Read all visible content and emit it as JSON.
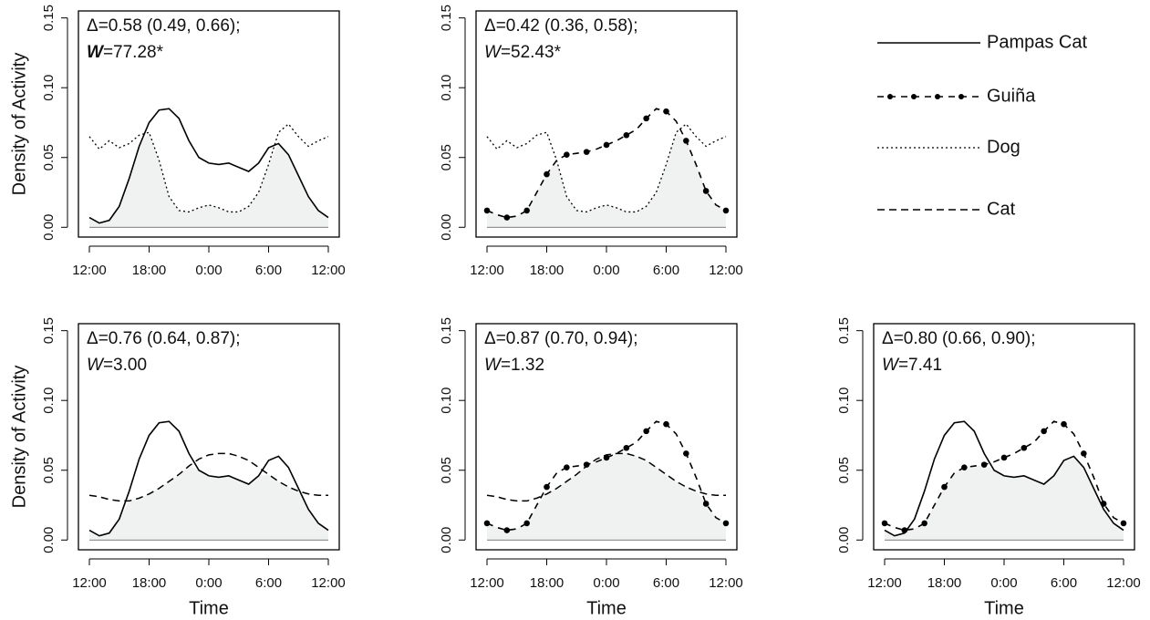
{
  "legend": [
    {
      "name": "Pampas Cat",
      "style": "solid"
    },
    {
      "name": "Guiña",
      "style": "dot-dash"
    },
    {
      "name": "Dog",
      "style": "dotted"
    },
    {
      "name": "Cat",
      "style": "dashed"
    }
  ],
  "chart_data": [
    {
      "type": "line",
      "annotation": [
        "Δ=0.58 (0.49, 0.66);",
        "W=77.28*"
      ],
      "ylabel": "Density of Activity",
      "x": [
        12,
        13,
        14,
        15,
        16,
        17,
        18,
        19,
        20,
        21,
        22,
        23,
        24,
        25,
        26,
        27,
        28,
        29,
        30,
        31,
        32,
        33,
        34,
        35,
        36
      ],
      "xlim": [
        10.9,
        37.1
      ],
      "xticks": [
        {
          "value": 12,
          "label": "12:00"
        },
        {
          "value": 18,
          "label": "18:00"
        },
        {
          "value": 24,
          "label": "0:00"
        },
        {
          "value": 30,
          "label": "6:00"
        },
        {
          "value": 36,
          "label": "12:00"
        }
      ],
      "ylim": [
        -0.007,
        0.155
      ],
      "yticks": [
        {
          "value": 0,
          "label": "0.00"
        },
        {
          "value": 0.05,
          "label": "0.05"
        },
        {
          "value": 0.1,
          "label": "0.10"
        },
        {
          "value": 0.15,
          "label": "0.15"
        }
      ],
      "series": [
        {
          "style": "solid",
          "color": "#000000",
          "values": [
            0.007,
            0.003,
            0.005,
            0.015,
            0.035,
            0.058,
            0.075,
            0.084,
            0.085,
            0.078,
            0.062,
            0.05,
            0.046,
            0.045,
            0.046,
            0.043,
            0.04,
            0.046,
            0.057,
            0.06,
            0.052,
            0.037,
            0.022,
            0.012,
            0.007
          ]
        },
        {
          "style": "dotted",
          "color": "#000000",
          "values": [
            0.065,
            0.056,
            0.062,
            0.057,
            0.06,
            0.066,
            0.068,
            0.048,
            0.022,
            0.012,
            0.011,
            0.014,
            0.016,
            0.014,
            0.011,
            0.011,
            0.015,
            0.025,
            0.045,
            0.068,
            0.074,
            0.065,
            0.058,
            0.062,
            0.065
          ]
        }
      ]
    },
    {
      "type": "line",
      "annotation": [
        "Δ=0.42 (0.36, 0.58);",
        "W=52.43*"
      ],
      "x": [
        12,
        13,
        14,
        15,
        16,
        17,
        18,
        19,
        20,
        21,
        22,
        23,
        24,
        25,
        26,
        27,
        28,
        29,
        30,
        31,
        32,
        33,
        34,
        35,
        36
      ],
      "xlim": [
        10.9,
        37.1
      ],
      "xticks": [
        {
          "value": 12,
          "label": "12:00"
        },
        {
          "value": 18,
          "label": "18:00"
        },
        {
          "value": 24,
          "label": "0:00"
        },
        {
          "value": 30,
          "label": "6:00"
        },
        {
          "value": 36,
          "label": "12:00"
        }
      ],
      "ylim": [
        -0.007,
        0.155
      ],
      "yticks": [
        {
          "value": 0,
          "label": "0.00"
        },
        {
          "value": 0.05,
          "label": "0.05"
        },
        {
          "value": 0.1,
          "label": "0.10"
        },
        {
          "value": 0.15,
          "label": "0.15"
        }
      ],
      "series": [
        {
          "style": "dot-dash",
          "color": "#000000",
          "values": [
            0.012,
            0.009,
            0.007,
            0.008,
            0.012,
            0.025,
            0.038,
            0.048,
            0.052,
            0.053,
            0.054,
            0.056,
            0.059,
            0.062,
            0.066,
            0.07,
            0.078,
            0.085,
            0.083,
            0.076,
            0.062,
            0.045,
            0.026,
            0.016,
            0.012
          ]
        },
        {
          "style": "dotted",
          "color": "#000000",
          "values": [
            0.065,
            0.056,
            0.062,
            0.057,
            0.06,
            0.066,
            0.068,
            0.048,
            0.022,
            0.012,
            0.011,
            0.014,
            0.016,
            0.014,
            0.011,
            0.011,
            0.015,
            0.025,
            0.045,
            0.068,
            0.074,
            0.065,
            0.058,
            0.062,
            0.065
          ]
        }
      ]
    },
    {
      "type": "line",
      "annotation": [
        "Δ=0.76 (0.64, 0.87);",
        "W=3.00"
      ],
      "ylabel": "Density of Activity",
      "xlabel": "Time",
      "x": [
        12,
        13,
        14,
        15,
        16,
        17,
        18,
        19,
        20,
        21,
        22,
        23,
        24,
        25,
        26,
        27,
        28,
        29,
        30,
        31,
        32,
        33,
        34,
        35,
        36
      ],
      "xlim": [
        10.9,
        37.1
      ],
      "xticks": [
        {
          "value": 12,
          "label": "12:00"
        },
        {
          "value": 18,
          "label": "18:00"
        },
        {
          "value": 24,
          "label": "0:00"
        },
        {
          "value": 30,
          "label": "6:00"
        },
        {
          "value": 36,
          "label": "12:00"
        }
      ],
      "ylim": [
        -0.007,
        0.155
      ],
      "yticks": [
        {
          "value": 0,
          "label": "0.00"
        },
        {
          "value": 0.05,
          "label": "0.05"
        },
        {
          "value": 0.1,
          "label": "0.10"
        },
        {
          "value": 0.15,
          "label": "0.15"
        }
      ],
      "series": [
        {
          "style": "solid",
          "color": "#000000",
          "values": [
            0.007,
            0.003,
            0.005,
            0.015,
            0.035,
            0.058,
            0.075,
            0.084,
            0.085,
            0.078,
            0.062,
            0.05,
            0.046,
            0.045,
            0.046,
            0.043,
            0.04,
            0.046,
            0.057,
            0.06,
            0.052,
            0.037,
            0.022,
            0.012,
            0.007
          ]
        },
        {
          "style": "dashed",
          "color": "#000000",
          "values": [
            0.032,
            0.031,
            0.029,
            0.028,
            0.028,
            0.03,
            0.033,
            0.037,
            0.042,
            0.047,
            0.053,
            0.058,
            0.061,
            0.062,
            0.062,
            0.06,
            0.057,
            0.052,
            0.047,
            0.042,
            0.038,
            0.035,
            0.033,
            0.032,
            0.032
          ]
        }
      ]
    },
    {
      "type": "line",
      "annotation": [
        "Δ=0.87 (0.70, 0.94);",
        "W=1.32"
      ],
      "xlabel": "Time",
      "x": [
        12,
        13,
        14,
        15,
        16,
        17,
        18,
        19,
        20,
        21,
        22,
        23,
        24,
        25,
        26,
        27,
        28,
        29,
        30,
        31,
        32,
        33,
        34,
        35,
        36
      ],
      "xlim": [
        10.9,
        37.1
      ],
      "xticks": [
        {
          "value": 12,
          "label": "12:00"
        },
        {
          "value": 18,
          "label": "18:00"
        },
        {
          "value": 24,
          "label": "0:00"
        },
        {
          "value": 30,
          "label": "6:00"
        },
        {
          "value": 36,
          "label": "12:00"
        }
      ],
      "ylim": [
        -0.007,
        0.155
      ],
      "yticks": [
        {
          "value": 0,
          "label": "0.00"
        },
        {
          "value": 0.05,
          "label": "0.05"
        },
        {
          "value": 0.1,
          "label": "0.10"
        },
        {
          "value": 0.15,
          "label": "0.15"
        }
      ],
      "series": [
        {
          "style": "dot-dash",
          "color": "#000000",
          "values": [
            0.012,
            0.009,
            0.007,
            0.008,
            0.012,
            0.025,
            0.038,
            0.048,
            0.052,
            0.053,
            0.054,
            0.056,
            0.059,
            0.062,
            0.066,
            0.07,
            0.078,
            0.085,
            0.083,
            0.076,
            0.062,
            0.045,
            0.026,
            0.016,
            0.012
          ]
        },
        {
          "style": "dashed",
          "color": "#000000",
          "values": [
            0.032,
            0.031,
            0.029,
            0.028,
            0.028,
            0.03,
            0.033,
            0.037,
            0.042,
            0.047,
            0.053,
            0.058,
            0.061,
            0.062,
            0.062,
            0.06,
            0.057,
            0.052,
            0.047,
            0.042,
            0.038,
            0.035,
            0.033,
            0.032,
            0.032
          ]
        }
      ]
    },
    {
      "type": "line",
      "annotation": [
        "Δ=0.80 (0.66, 0.90);",
        "W=7.41"
      ],
      "xlabel": "Time",
      "x": [
        12,
        13,
        14,
        15,
        16,
        17,
        18,
        19,
        20,
        21,
        22,
        23,
        24,
        25,
        26,
        27,
        28,
        29,
        30,
        31,
        32,
        33,
        34,
        35,
        36
      ],
      "xlim": [
        10.9,
        37.1
      ],
      "xticks": [
        {
          "value": 12,
          "label": "12:00"
        },
        {
          "value": 18,
          "label": "18:00"
        },
        {
          "value": 24,
          "label": "0:00"
        },
        {
          "value": 30,
          "label": "6:00"
        },
        {
          "value": 36,
          "label": "12:00"
        }
      ],
      "ylim": [
        -0.007,
        0.155
      ],
      "yticks": [
        {
          "value": 0,
          "label": "0.00"
        },
        {
          "value": 0.05,
          "label": "0.05"
        },
        {
          "value": 0.1,
          "label": "0.10"
        },
        {
          "value": 0.15,
          "label": "0.15"
        }
      ],
      "series": [
        {
          "style": "solid",
          "color": "#000000",
          "values": [
            0.007,
            0.003,
            0.005,
            0.015,
            0.035,
            0.058,
            0.075,
            0.084,
            0.085,
            0.078,
            0.062,
            0.05,
            0.046,
            0.045,
            0.046,
            0.043,
            0.04,
            0.046,
            0.057,
            0.06,
            0.052,
            0.037,
            0.022,
            0.012,
            0.007
          ]
        },
        {
          "style": "dot-dash",
          "color": "#000000",
          "values": [
            0.012,
            0.009,
            0.007,
            0.008,
            0.012,
            0.025,
            0.038,
            0.048,
            0.052,
            0.053,
            0.054,
            0.056,
            0.059,
            0.062,
            0.066,
            0.07,
            0.078,
            0.085,
            0.083,
            0.076,
            0.062,
            0.045,
            0.026,
            0.016,
            0.012
          ]
        }
      ]
    }
  ]
}
